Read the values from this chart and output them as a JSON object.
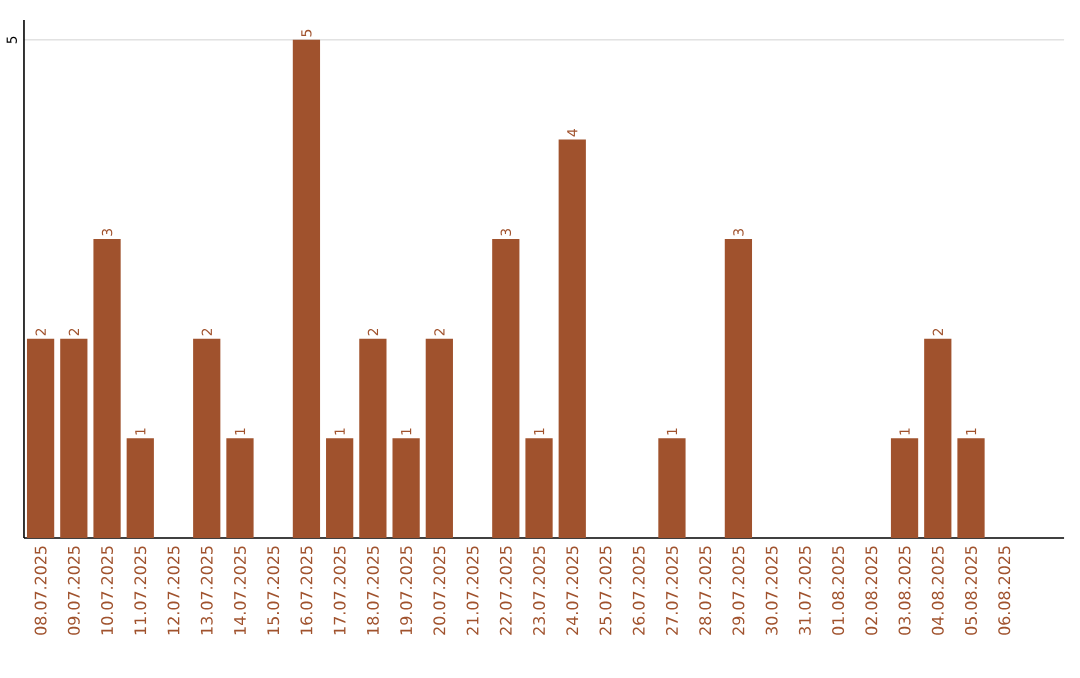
{
  "chart_data": {
    "type": "bar",
    "categories": [
      "08.07.2025",
      "09.07.2025",
      "10.07.2025",
      "11.07.2025",
      "12.07.2025",
      "13.07.2025",
      "14.07.2025",
      "15.07.2025",
      "16.07.2025",
      "17.07.2025",
      "18.07.2025",
      "19.07.2025",
      "20.07.2025",
      "21.07.2025",
      "22.07.2025",
      "23.07.2025",
      "24.07.2025",
      "25.07.2025",
      "26.07.2025",
      "27.07.2025",
      "28.07.2025",
      "29.07.2025",
      "30.07.2025",
      "31.07.2025",
      "01.08.2025",
      "02.08.2025",
      "03.08.2025",
      "04.08.2025",
      "05.08.2025",
      "06.08.2025"
    ],
    "values": [
      2,
      2,
      3,
      1,
      0,
      2,
      1,
      0,
      5,
      1,
      2,
      1,
      2,
      0,
      3,
      1,
      4,
      0,
      0,
      1,
      0,
      3,
      0,
      0,
      0,
      0,
      1,
      2,
      1,
      0
    ],
    "value_labels": [
      "2",
      "2",
      "3",
      "1",
      null,
      "2",
      "1",
      null,
      "5",
      "1",
      "2",
      "1",
      "2",
      null,
      "3",
      "1",
      "4",
      null,
      null,
      "1",
      null,
      "3",
      null,
      null,
      null,
      null,
      "1",
      "2",
      "1",
      null
    ],
    "color": "#a0522d",
    "ylim": [
      0,
      5.2
    ],
    "yticks": [
      5
    ],
    "grid": "y"
  }
}
